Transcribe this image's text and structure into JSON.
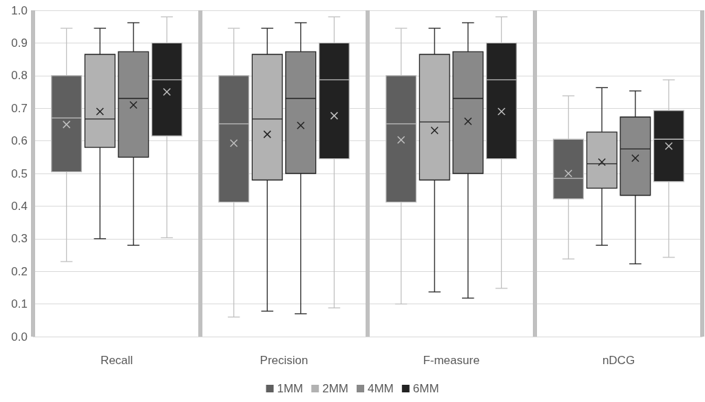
{
  "chart_data": {
    "type": "box",
    "categories": [
      "Recall",
      "Precision",
      "F-measure",
      "nDCG"
    ],
    "series": [
      {
        "name": "1MM",
        "color": "#5f5f5f",
        "boxes": [
          {
            "low": 0.23,
            "q1": 0.505,
            "median": 0.67,
            "q3": 0.8,
            "high": 0.945,
            "mean": 0.65
          },
          {
            "low": 0.06,
            "q1": 0.412,
            "median": 0.652,
            "q3": 0.8,
            "high": 0.945,
            "mean": 0.593
          },
          {
            "low": 0.1,
            "q1": 0.412,
            "median": 0.652,
            "q3": 0.8,
            "high": 0.945,
            "mean": 0.603
          },
          {
            "low": 0.238,
            "q1": 0.422,
            "median": 0.485,
            "q3": 0.605,
            "high": 0.738,
            "mean": 0.5
          }
        ]
      },
      {
        "name": "2MM",
        "color": "#b2b2b2",
        "boxes": [
          {
            "low": 0.3,
            "q1": 0.58,
            "median": 0.667,
            "q3": 0.865,
            "high": 0.945,
            "mean": 0.69
          },
          {
            "low": 0.078,
            "q1": 0.48,
            "median": 0.667,
            "q3": 0.865,
            "high": 0.945,
            "mean": 0.62
          },
          {
            "low": 0.137,
            "q1": 0.48,
            "median": 0.658,
            "q3": 0.865,
            "high": 0.945,
            "mean": 0.632
          },
          {
            "low": 0.28,
            "q1": 0.455,
            "median": 0.53,
            "q3": 0.627,
            "high": 0.763,
            "mean": 0.535
          }
        ]
      },
      {
        "name": "4MM",
        "color": "#898989",
        "boxes": [
          {
            "low": 0.28,
            "q1": 0.55,
            "median": 0.73,
            "q3": 0.873,
            "high": 0.962,
            "mean": 0.71
          },
          {
            "low": 0.07,
            "q1": 0.5,
            "median": 0.73,
            "q3": 0.873,
            "high": 0.962,
            "mean": 0.647
          },
          {
            "low": 0.118,
            "q1": 0.5,
            "median": 0.73,
            "q3": 0.873,
            "high": 0.962,
            "mean": 0.66
          },
          {
            "low": 0.223,
            "q1": 0.433,
            "median": 0.575,
            "q3": 0.673,
            "high": 0.753,
            "mean": 0.547
          }
        ]
      },
      {
        "name": "6MM",
        "color": "#222222",
        "boxes": [
          {
            "low": 0.303,
            "q1": 0.615,
            "median": 0.787,
            "q3": 0.9,
            "high": 0.98,
            "mean": 0.75
          },
          {
            "low": 0.088,
            "q1": 0.545,
            "median": 0.787,
            "q3": 0.9,
            "high": 0.98,
            "mean": 0.677
          },
          {
            "low": 0.148,
            "q1": 0.545,
            "median": 0.787,
            "q3": 0.9,
            "high": 0.98,
            "mean": 0.69
          },
          {
            "low": 0.243,
            "q1": 0.475,
            "median": 0.605,
            "q3": 0.693,
            "high": 0.787,
            "mean": 0.584
          }
        ]
      }
    ],
    "ylim": [
      0,
      1
    ],
    "yticks": [
      {
        "value": 0,
        "label": "0.0"
      },
      0.1,
      0.2,
      0.3,
      0.4,
      0.5,
      0.6,
      0.7,
      0.8,
      0.9,
      {
        "value": 1,
        "label": "1.0"
      }
    ],
    "grid": true,
    "legend": "bottom"
  }
}
